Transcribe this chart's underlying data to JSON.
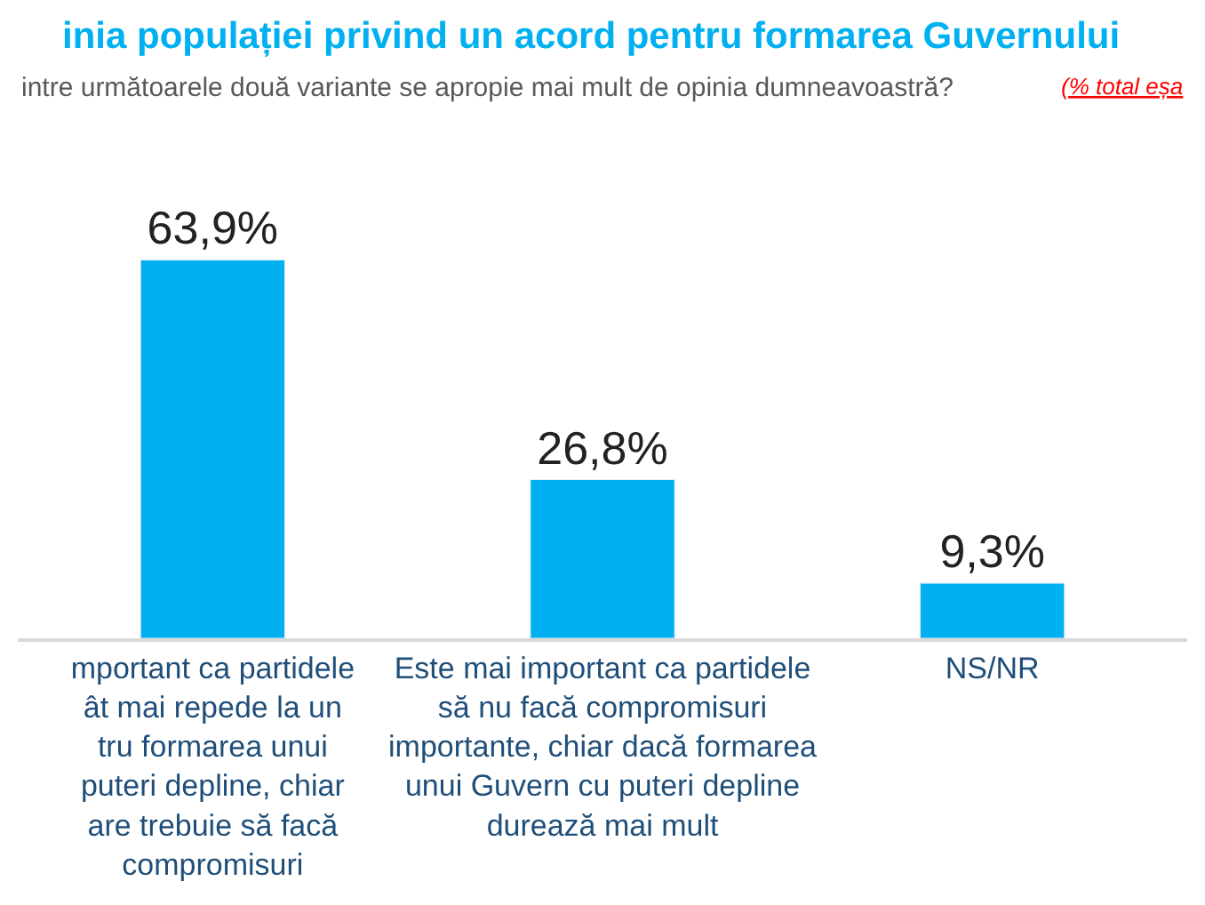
{
  "chart_data": {
    "type": "bar",
    "title": "inia populației privind un acord pentru formarea Guvernului",
    "subtitle": "intre următoarele două variante se apropie mai mult de opinia dumneavoastră?",
    "annotations": [
      "(% total eșa"
    ],
    "categories": [
      "mportant ca partidele\nât mai repede la un\ntru formarea unui\nputeri depline, chiar\nare trebuie să facă\ncompromisuri",
      "Este mai important ca partidele\nsă nu facă compromisuri\nimportante, chiar dacă formarea\nunui Guvern cu puteri depline\ndurează mai mult",
      "NS/NR"
    ],
    "values": [
      63.9,
      26.8,
      9.3
    ],
    "value_labels": [
      "63,9%",
      "26,8%",
      "9,3%"
    ],
    "color": "#00b0f0",
    "tick_labels": "x",
    "legend": false
  }
}
